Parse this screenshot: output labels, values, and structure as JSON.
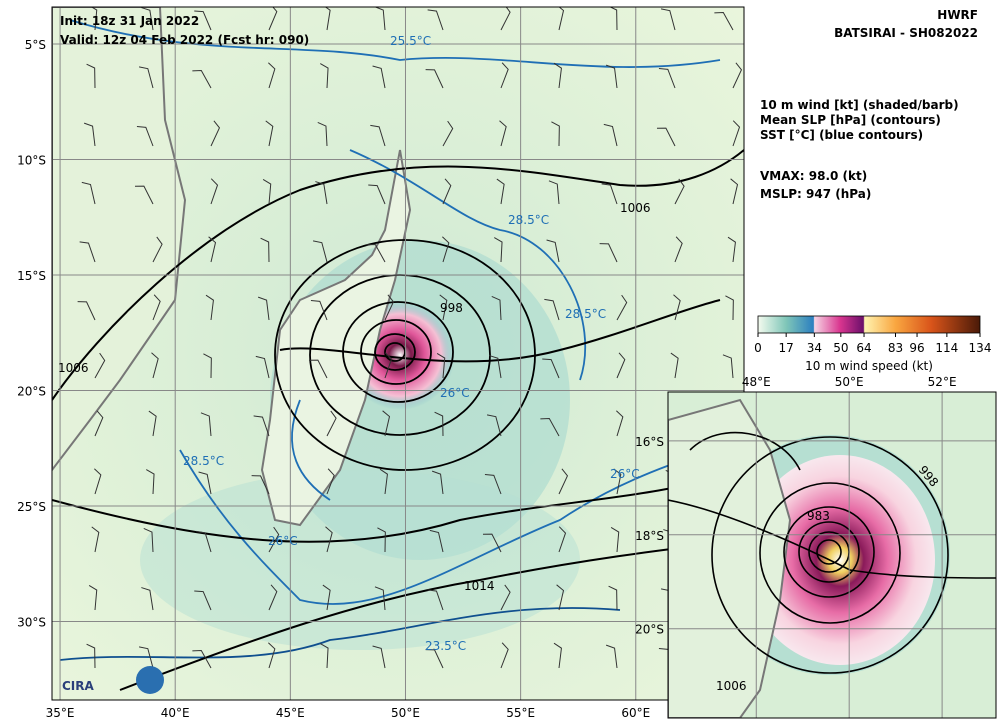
{
  "header": {
    "model": "HWRF",
    "storm": "BATSIRAI - SH082022"
  },
  "init": "Init:   18z 31 Jan 2022",
  "valid": "Valid: 12z 04 Feb 2022 (Fcst hr: 090)",
  "fields": [
    "10 m wind [kt] (shaded/barb)",
    "Mean SLP [hPa] (contours)",
    "SST [°C] (blue contours)"
  ],
  "vmax": "VMAX:  98.0 (kt)",
  "mslp": "MSLP:  947 (hPa)",
  "colorbar": {
    "label": "10 m wind speed (kt)",
    "lim": [
      0,
      134
    ],
    "ticks": [
      0,
      17,
      34,
      50,
      64,
      83,
      96,
      114,
      134
    ]
  },
  "map": {
    "lonlim": [
      34.65,
      64.7
    ],
    "latlim": [
      -3.4,
      -33.4
    ],
    "lonticks": [
      {
        "value": 35,
        "label": "35°E"
      },
      {
        "value": 40,
        "label": "40°E"
      },
      {
        "value": 45,
        "label": "45°E"
      },
      {
        "value": 50,
        "label": "50°E"
      },
      {
        "value": 55,
        "label": "55°E"
      },
      {
        "value": 60,
        "label": "60°E"
      }
    ],
    "latticks": [
      {
        "value": -5,
        "label": "5°S"
      },
      {
        "value": -10,
        "label": "10°S"
      },
      {
        "value": -15,
        "label": "15°S"
      },
      {
        "value": -20,
        "label": "20°S"
      },
      {
        "value": -25,
        "label": "25°S"
      },
      {
        "value": -30,
        "label": "30°S"
      }
    ],
    "contour_labels": [
      "1006",
      "1006",
      "998",
      "1014",
      "28.5°C",
      "28.5°C",
      "28.5°C",
      "26°C",
      "26°C",
      "26°C",
      "25.5°C",
      "23.5°C"
    ]
  },
  "inset": {
    "lonlim": [
      46.1,
      53.16
    ],
    "latlim": [
      -14.96,
      -21.9
    ],
    "lonticks": [
      {
        "value": 48,
        "label": "48°E"
      },
      {
        "value": 50,
        "label": "50°E"
      },
      {
        "value": 52,
        "label": "52°E"
      }
    ],
    "latticks": [
      {
        "value": -16,
        "label": "16°S"
      },
      {
        "value": -18,
        "label": "18°S"
      },
      {
        "value": -20,
        "label": "20°S"
      }
    ],
    "contour_labels": [
      "998",
      "983",
      "1006"
    ]
  },
  "logo": "CIRA"
}
